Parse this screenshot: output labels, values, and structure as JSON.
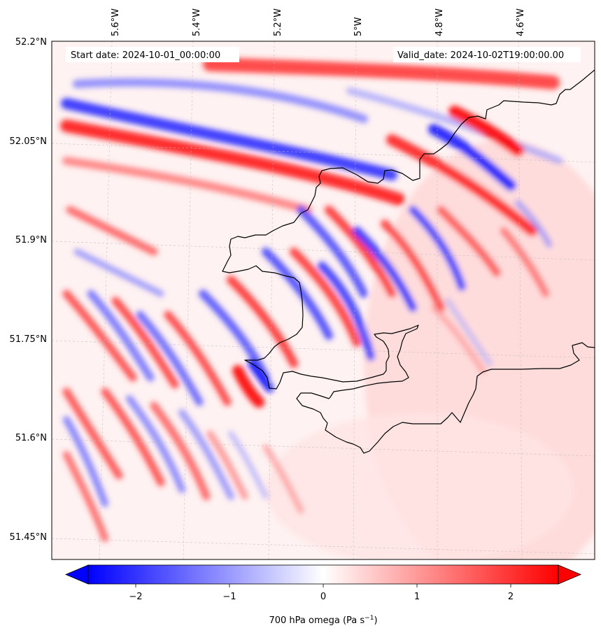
{
  "map": {
    "variable": "700 hPa omega",
    "start_date_label": "Start date: 2024-10-01_00:00:00",
    "valid_date_label": "Valid_date: 2024-10-02T19:00:00.00",
    "lat_labels": [
      "52.2°N",
      "52.05°N",
      "51.9°N",
      "51.75°N",
      "51.6°N",
      "51.45°N"
    ],
    "lon_labels": [
      "5.6°W",
      "5.4°W",
      "5.2°W",
      "5°W",
      "4.8°W",
      "4.6°W"
    ],
    "lat_extent": [
      51.42,
      52.2
    ],
    "lon_extent": [
      -5.75,
      -4.48
    ],
    "colors": {
      "negative": "#0000ff",
      "zero": "#ffffff",
      "positive": "#ff0000",
      "coast": "#000000"
    }
  },
  "colorbar": {
    "label_main": "700 hPa omega (Pa s",
    "label_exp": "−1",
    "label_close": ")",
    "ticks": [
      "−2",
      "−1",
      "0",
      "1",
      "2"
    ],
    "range": [
      -2.75,
      2.75
    ],
    "extend": "both"
  }
}
